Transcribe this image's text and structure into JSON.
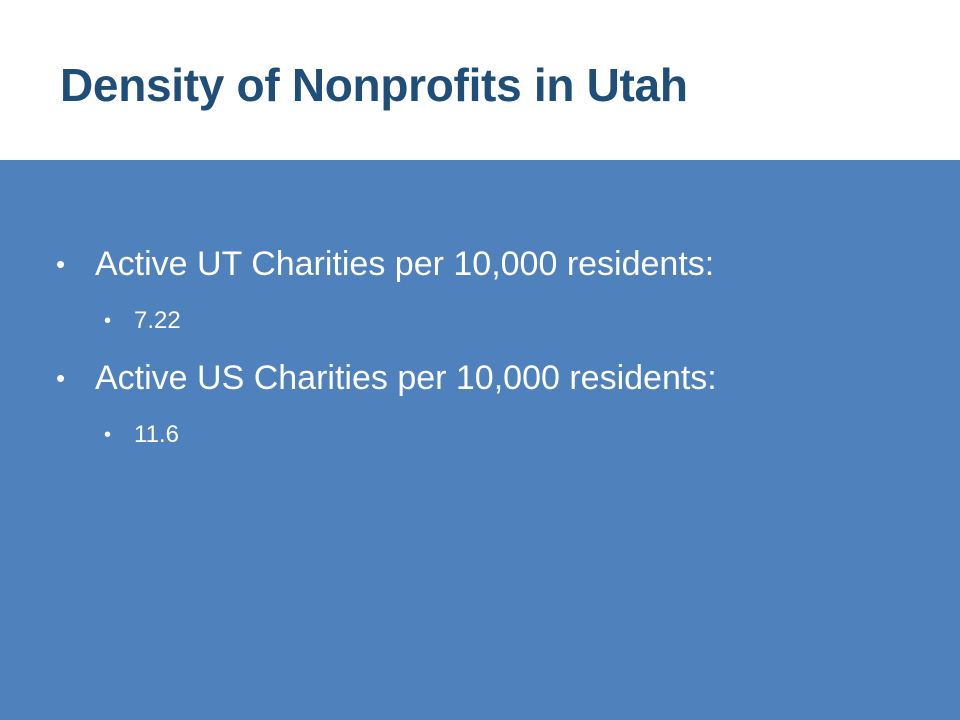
{
  "slide": {
    "title": "Density of Nonprofits in Utah",
    "bullets": [
      {
        "text": "Active UT Charities per 10,000 residents:",
        "level": 1
      },
      {
        "text": "7.22",
        "level": 2
      },
      {
        "text": "Active US Charities per 10,000 residents:",
        "level": 1
      },
      {
        "text": "11.6",
        "level": 2
      }
    ],
    "bullet_symbol": "•"
  },
  "colors": {
    "title": "#1f4e79",
    "content_background": "#4f81bd",
    "body_text": "#ffffff"
  }
}
